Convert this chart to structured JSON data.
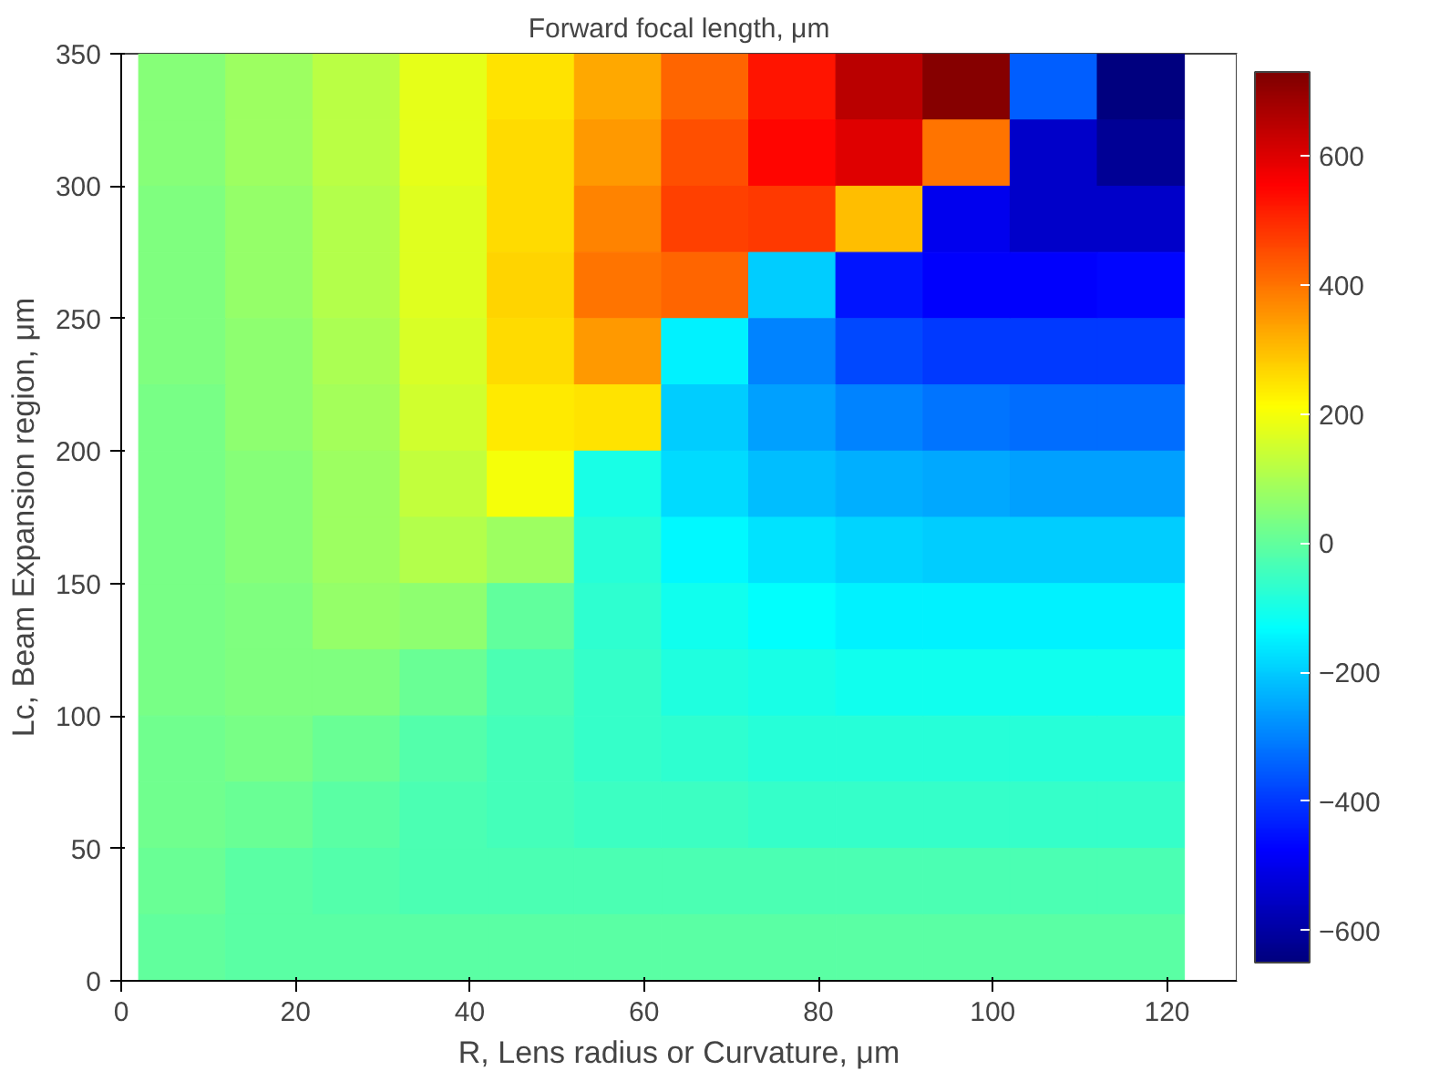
{
  "chart_data": {
    "type": "heatmap",
    "title": "Forward focal length, μm",
    "xlabel": "R, Lens radius or Curvature, μm",
    "ylabel": "Lc, Beam Expansion region, μm",
    "x": [
      7,
      17,
      27,
      37,
      47,
      57,
      67,
      77,
      87,
      97,
      107,
      117
    ],
    "cells": [
      [
        50,
        80,
        120,
        180,
        250,
        330,
        420,
        530,
        650,
        720,
        -350,
        -650
      ],
      [
        50,
        80,
        120,
        180,
        260,
        350,
        450,
        550,
        600,
        400,
        -550,
        -620
      ],
      [
        40,
        70,
        110,
        170,
        260,
        380,
        470,
        480,
        300,
        -500,
        -550,
        -550
      ],
      [
        40,
        70,
        110,
        170,
        270,
        400,
        420,
        -200,
        -450,
        -480,
        -480,
        -470
      ],
      [
        40,
        60,
        100,
        160,
        260,
        350,
        -150,
        -300,
        -380,
        -400,
        -400,
        -400
      ],
      [
        30,
        60,
        90,
        150,
        240,
        250,
        -200,
        -260,
        -300,
        -320,
        -330,
        -330
      ],
      [
        30,
        50,
        80,
        130,
        200,
        -100,
        -180,
        -220,
        -240,
        -250,
        -260,
        -260
      ],
      [
        30,
        50,
        80,
        110,
        80,
        -80,
        -140,
        -170,
        -190,
        -200,
        -200,
        -200
      ],
      [
        30,
        40,
        70,
        60,
        0,
        -70,
        -110,
        -130,
        -150,
        -150,
        -150,
        -150
      ],
      [
        30,
        40,
        40,
        10,
        -30,
        -60,
        -90,
        -100,
        -110,
        -110,
        -110,
        -110
      ],
      [
        20,
        30,
        10,
        -20,
        -40,
        -60,
        -70,
        -80,
        -80,
        -80,
        -80,
        -80
      ],
      [
        20,
        10,
        -10,
        -30,
        -40,
        -50,
        -50,
        -60,
        -60,
        -60,
        -60,
        -60
      ],
      [
        10,
        -10,
        -20,
        -30,
        -30,
        -30,
        -30,
        -30,
        -30,
        -30,
        -30,
        -30
      ],
      [
        0,
        -10,
        -10,
        -10,
        -10,
        -10,
        -10,
        -10,
        -10,
        -10,
        -10,
        -10
      ]
    ],
    "xlim": [
      0,
      128
    ],
    "ylim": [
      0,
      350
    ],
    "xticks": [
      0,
      20,
      40,
      60,
      80,
      100,
      120
    ],
    "yticks": [
      0,
      50,
      100,
      150,
      200,
      250,
      300,
      350
    ],
    "clim": [
      -650,
      730
    ],
    "cticks": [
      -600,
      -400,
      -200,
      0,
      200,
      400,
      600
    ]
  }
}
